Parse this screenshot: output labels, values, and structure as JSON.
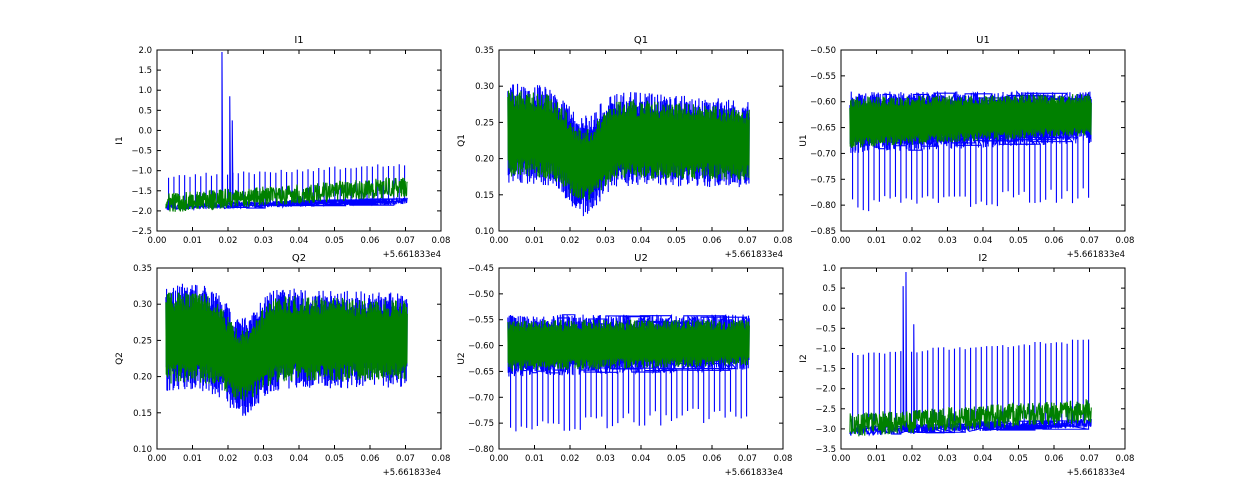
{
  "colors": {
    "series_blue": "#0000ff",
    "series_green": "#008000",
    "axes": "#000000",
    "background": "#ffffff"
  },
  "chart_data": [
    {
      "type": "line",
      "title": "I1",
      "xlabel": "",
      "ylabel": "I1",
      "xlim": [
        0.0,
        0.08
      ],
      "ylim": [
        -2.5,
        2.0
      ],
      "xticks": [
        "0.00",
        "0.01",
        "0.02",
        "0.03",
        "0.04",
        "0.05",
        "0.06",
        "0.07",
        "0.08"
      ],
      "yticks": [
        "2.0",
        "1.5",
        "1.0",
        "0.5",
        "0.0",
        "−0.5",
        "−1.0",
        "−1.5",
        "−2.0",
        "−2.5"
      ],
      "offset_label": "+5.661833e4",
      "series": [
        {
          "color": "#0000ff",
          "x_range": [
            0.0025,
            0.0705
          ],
          "baseline": [
            -1.9,
            -1.75
          ],
          "band": 0.08,
          "spike_top": [
            -1.15,
            -0.85
          ],
          "spike_count": 45,
          "extra_spikes": [
            [
              0.0183,
              1.95
            ],
            [
              0.0205,
              0.85
            ],
            [
              0.0212,
              0.25
            ]
          ]
        },
        {
          "color": "#008000",
          "x_range": [
            0.0025,
            0.0705
          ],
          "baseline": [
            -1.8,
            -1.4
          ],
          "band": 0.25,
          "spike_top": [],
          "spike_count": 0,
          "extra_spikes": []
        }
      ]
    },
    {
      "type": "line",
      "title": "Q1",
      "xlabel": "",
      "ylabel": "Q1",
      "xlim": [
        0.0,
        0.08
      ],
      "ylim": [
        0.1,
        0.35
      ],
      "xticks": [
        "0.00",
        "0.01",
        "0.02",
        "0.03",
        "0.04",
        "0.05",
        "0.06",
        "0.07",
        "0.08"
      ],
      "yticks": [
        "0.35",
        "0.30",
        "0.25",
        "0.20",
        "0.15",
        "0.10"
      ],
      "offset_label": "+5.661833e4",
      "series": [
        {
          "color": "#0000ff",
          "x_range": [
            0.0025,
            0.0705
          ],
          "center": [
            0.235,
            0.22
          ],
          "amp": [
            0.07,
            0.06
          ],
          "dip_at": 0.024,
          "dip_center": 0.19,
          "dip_amp": 0.07,
          "spike_count": 0
        },
        {
          "color": "#008000",
          "x_range": [
            0.0025,
            0.0705
          ],
          "center": [
            0.235,
            0.22
          ],
          "amp": [
            0.06,
            0.05
          ],
          "dip_at": 0.024,
          "dip_center": 0.19,
          "dip_amp": 0.05,
          "spike_count": 0
        }
      ]
    },
    {
      "type": "line",
      "title": "U1",
      "xlabel": "",
      "ylabel": "U1",
      "xlim": [
        0.0,
        0.08
      ],
      "ylim": [
        -0.85,
        -0.5
      ],
      "xticks": [
        "0.00",
        "0.01",
        "0.02",
        "0.03",
        "0.04",
        "0.05",
        "0.06",
        "0.07",
        "0.08"
      ],
      "yticks": [
        "−0.50",
        "−0.55",
        "−0.60",
        "−0.65",
        "−0.70",
        "−0.75",
        "−0.80",
        "−0.85"
      ],
      "offset_label": "+5.661833e4",
      "series": [
        {
          "color": "#0000ff",
          "x_range": [
            0.0025,
            0.0705
          ],
          "center": [
            -0.64,
            -0.63
          ],
          "amp": [
            0.06,
            0.05
          ],
          "spike_low": [
            -0.8,
            -0.78
          ],
          "spike_count": 45
        },
        {
          "color": "#008000",
          "x_range": [
            0.0025,
            0.0705
          ],
          "center": [
            -0.64,
            -0.625
          ],
          "amp": [
            0.05,
            0.04
          ],
          "spike_low": [],
          "spike_count": 0
        }
      ]
    },
    {
      "type": "line",
      "title": "Q2",
      "xlabel": "",
      "ylabel": "Q2",
      "xlim": [
        0.0,
        0.08
      ],
      "ylim": [
        0.1,
        0.35
      ],
      "xticks": [
        "0.00",
        "0.01",
        "0.02",
        "0.03",
        "0.04",
        "0.05",
        "0.06",
        "0.07",
        "0.08"
      ],
      "yticks": [
        "0.35",
        "0.30",
        "0.25",
        "0.20",
        "0.15",
        "0.10"
      ],
      "offset_label": "+5.661833e4",
      "series": [
        {
          "color": "#0000ff",
          "x_range": [
            0.0025,
            0.0705
          ],
          "center": [
            0.255,
            0.25
          ],
          "amp": [
            0.075,
            0.065
          ],
          "dip_at": 0.024,
          "dip_center": 0.215,
          "dip_amp": 0.07,
          "spike_count": 0
        },
        {
          "color": "#008000",
          "x_range": [
            0.0025,
            0.0705
          ],
          "center": [
            0.255,
            0.25
          ],
          "amp": [
            0.065,
            0.055
          ],
          "dip_at": 0.024,
          "dip_center": 0.215,
          "dip_amp": 0.05,
          "spike_count": 0
        }
      ]
    },
    {
      "type": "line",
      "title": "U2",
      "xlabel": "",
      "ylabel": "U2",
      "xlim": [
        0.0,
        0.08
      ],
      "ylim": [
        -0.8,
        -0.45
      ],
      "xticks": [
        "0.00",
        "0.01",
        "0.02",
        "0.03",
        "0.04",
        "0.05",
        "0.06",
        "0.07",
        "0.08"
      ],
      "yticks": [
        "−0.45",
        "−0.50",
        "−0.55",
        "−0.60",
        "−0.65",
        "−0.70",
        "−0.75",
        "−0.80"
      ],
      "offset_label": "+5.661833e4",
      "series": [
        {
          "color": "#0000ff",
          "x_range": [
            0.0025,
            0.0705
          ],
          "center": [
            -0.6,
            -0.595
          ],
          "amp": [
            0.06,
            0.055
          ],
          "spike_low": [
            -0.76,
            -0.73
          ],
          "spike_count": 45
        },
        {
          "color": "#008000",
          "x_range": [
            0.0025,
            0.0705
          ],
          "center": [
            -0.6,
            -0.595
          ],
          "amp": [
            0.05,
            0.045
          ],
          "spike_low": [],
          "spike_count": 0
        }
      ]
    },
    {
      "type": "line",
      "title": "I2",
      "xlabel": "",
      "ylabel": "I2",
      "xlim": [
        0.0,
        0.08
      ],
      "ylim": [
        -3.5,
        1.0
      ],
      "xticks": [
        "0.00",
        "0.01",
        "0.02",
        "0.03",
        "0.04",
        "0.05",
        "0.06",
        "0.07",
        "0.08"
      ],
      "yticks": [
        "1.0",
        "0.5",
        "0.0",
        "−0.5",
        "−1.0",
        "−1.5",
        "−2.0",
        "−2.5",
        "−3.0",
        "−3.5"
      ],
      "offset_label": "+5.661833e4",
      "series": [
        {
          "color": "#0000ff",
          "x_range": [
            0.0025,
            0.0705
          ],
          "baseline": [
            -3.05,
            -2.85
          ],
          "band": 0.12,
          "spike_top": [
            -1.15,
            -0.8
          ],
          "spike_count": 45,
          "extra_spikes": [
            [
              0.0175,
              0.55
            ],
            [
              0.0183,
              0.9
            ],
            [
              0.0205,
              -0.4
            ]
          ]
        },
        {
          "color": "#008000",
          "x_range": [
            0.0025,
            0.0705
          ],
          "baseline": [
            -2.9,
            -2.55
          ],
          "band": 0.3,
          "spike_top": [],
          "spike_count": 0,
          "extra_spikes": []
        }
      ]
    }
  ]
}
